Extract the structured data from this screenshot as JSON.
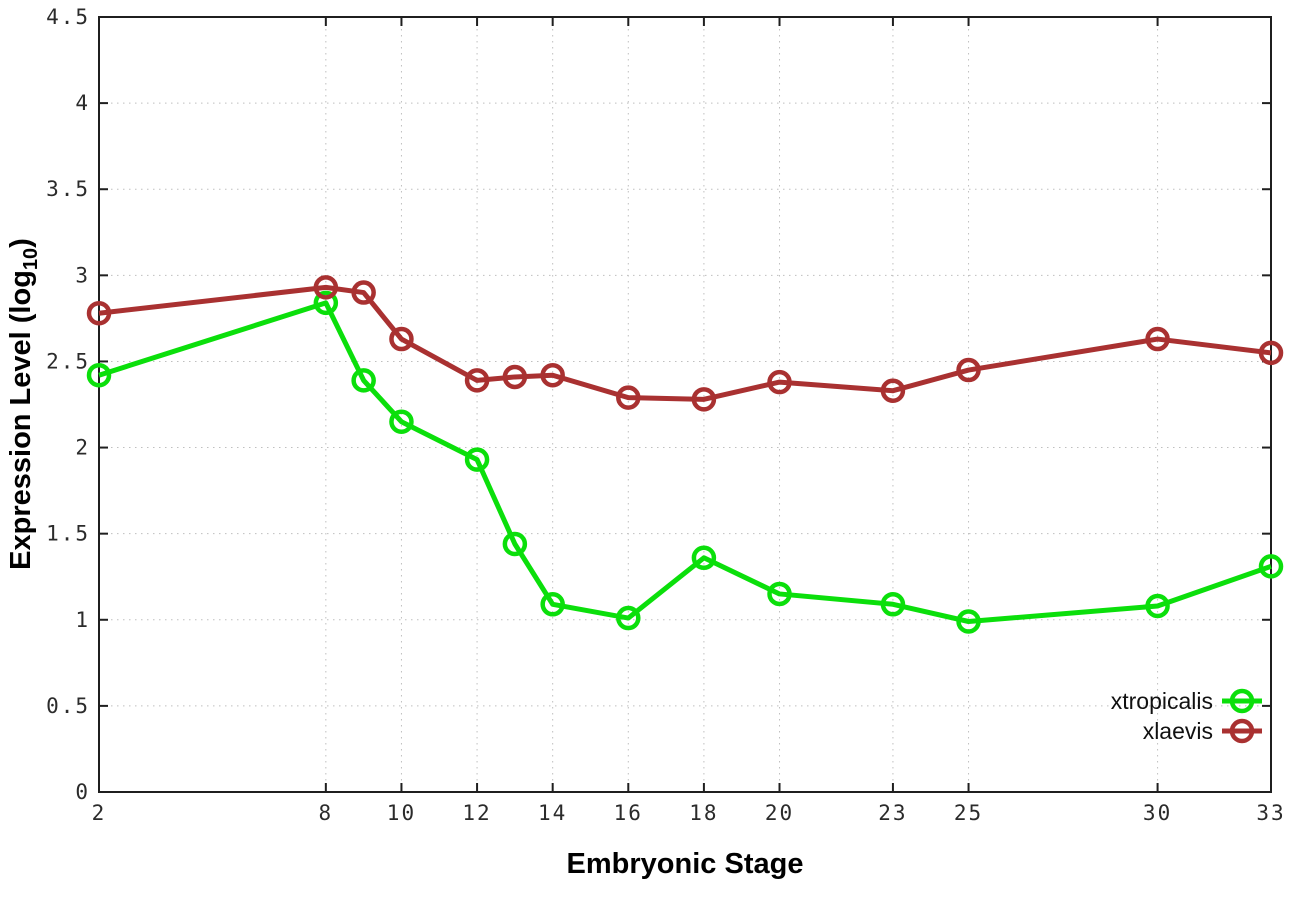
{
  "chart_data": {
    "type": "line",
    "title": "",
    "xlabel": "Embryonic Stage",
    "ylabel": "Expression Level (log10)",
    "ylabel_parts": {
      "main": "Expression Level (log",
      "sub": "10",
      "close": ")"
    },
    "x": [
      2,
      8,
      9,
      10,
      12,
      13,
      14,
      16,
      18,
      20,
      23,
      25,
      30,
      33
    ],
    "x_tick_labels": [
      "2",
      "8",
      "10",
      "12",
      "14",
      "16",
      "18",
      "20",
      "23",
      "25",
      "30",
      "33"
    ],
    "x_ticks": [
      2,
      8,
      10,
      12,
      14,
      16,
      18,
      20,
      23,
      25,
      30,
      33
    ],
    "y_ticks": [
      0,
      0.5,
      1,
      1.5,
      2,
      2.5,
      3,
      3.5,
      4,
      4.5
    ],
    "y_tick_labels": [
      "0",
      "0.5",
      "1",
      "1.5",
      "2",
      "2.5",
      "3",
      "3.5",
      "4",
      "4.5"
    ],
    "xlim": [
      2,
      33
    ],
    "ylim": [
      0,
      4.5
    ],
    "grid": true,
    "legend_position": "inside-bottom-right",
    "series": [
      {
        "name": "xtropicalis",
        "color": "#0bdf0b",
        "values": [
          2.42,
          2.84,
          2.39,
          2.15,
          1.93,
          1.44,
          1.09,
          1.01,
          1.36,
          1.15,
          1.09,
          0.99,
          1.08,
          1.31
        ]
      },
      {
        "name": "xlaevis",
        "color": "#a93131",
        "values": [
          2.78,
          2.93,
          2.9,
          2.63,
          2.39,
          2.41,
          2.42,
          2.29,
          2.28,
          2.38,
          2.33,
          2.45,
          2.63,
          2.55
        ]
      }
    ]
  },
  "style_colors": {
    "background": "#ffffff",
    "border": "#1f1f1f",
    "grid": "#bfbfbf",
    "tick_text": "#2b2b2b"
  }
}
